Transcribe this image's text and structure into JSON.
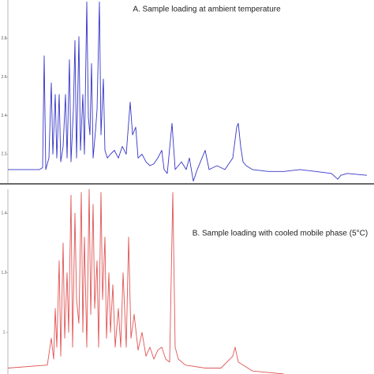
{
  "chart_data": [
    {
      "type": "line",
      "title": "A. Sample loading at ambient temperature",
      "xlim": [
        0,
        455
      ],
      "ylim": [
        2.05,
        3.0
      ],
      "yticks": [
        2.2,
        2.4,
        2.6,
        2.8
      ],
      "series": [
        {
          "color": "#3535c8",
          "x": [
            0,
            40,
            44,
            46,
            48,
            52,
            55,
            57,
            60,
            62,
            65,
            67,
            70,
            73,
            75,
            78,
            80,
            83,
            85,
            87,
            90,
            92,
            95,
            97,
            100,
            102,
            104,
            106,
            108,
            111,
            113,
            116,
            118,
            121,
            123,
            126,
            130,
            135,
            140,
            145,
            150,
            155,
            158,
            162,
            165,
            170,
            175,
            180,
            185,
            190,
            195,
            198,
            202,
            208,
            212,
            220,
            226,
            230,
            235,
            240,
            250,
            255,
            265,
            275,
            285,
            290,
            292,
            295,
            298,
            302,
            310,
            330,
            350,
            370,
            390,
            410,
            418,
            422,
            430,
            455
          ],
          "values": [
            2.12,
            2.12,
            2.13,
            2.71,
            2.12,
            2.18,
            2.57,
            2.2,
            2.51,
            2.18,
            2.51,
            2.16,
            2.24,
            2.51,
            2.18,
            2.69,
            2.16,
            2.43,
            2.79,
            2.18,
            2.81,
            2.22,
            2.51,
            2.2,
            2.99,
            2.39,
            2.3,
            2.67,
            2.18,
            2.32,
            2.43,
            2.99,
            2.3,
            2.59,
            2.22,
            2.18,
            2.2,
            2.22,
            2.18,
            2.24,
            2.2,
            2.47,
            2.3,
            2.34,
            2.18,
            2.2,
            2.16,
            2.14,
            2.15,
            2.18,
            2.22,
            2.12,
            2.1,
            2.36,
            2.12,
            2.16,
            2.12,
            2.18,
            2.06,
            2.12,
            2.22,
            2.12,
            2.14,
            2.12,
            2.18,
            2.34,
            2.36,
            2.24,
            2.16,
            2.14,
            2.12,
            2.11,
            2.11,
            2.12,
            2.11,
            2.1,
            2.07,
            2.09,
            2.1,
            2.09
          ]
        }
      ]
    },
    {
      "type": "line",
      "title": "B. Sample loading with cooled mobile phase (5°C)",
      "xlim": [
        0,
        455
      ],
      "ylim": [
        0.86,
        1.48
      ],
      "yticks": [
        1.0,
        1.2,
        1.4
      ],
      "series": [
        {
          "color": "#e05555",
          "x": [
            0,
            50,
            55,
            58,
            60,
            62,
            65,
            67,
            70,
            72,
            75,
            77,
            80,
            82,
            85,
            87,
            90,
            93,
            95,
            97,
            100,
            103,
            105,
            108,
            110,
            113,
            115,
            118,
            120,
            123,
            125,
            128,
            130,
            133,
            136,
            140,
            143,
            146,
            150,
            153,
            156,
            160,
            165,
            170,
            175,
            180,
            185,
            190,
            195,
            200,
            205,
            209,
            212,
            216,
            225,
            250,
            270,
            285,
            288,
            292,
            310,
            350
          ],
          "values": [
            0.88,
            0.89,
            0.98,
            0.91,
            1.08,
            0.95,
            1.24,
            0.92,
            1.3,
            0.98,
            1.2,
            1.0,
            1.46,
            0.95,
            1.4,
            1.11,
            1.03,
            1.47,
            1.0,
            1.32,
            0.95,
            1.48,
            1.06,
            1.43,
            1.08,
            1.24,
            0.95,
            1.47,
            1.11,
            1.32,
            0.98,
            1.2,
            1.0,
            1.16,
            0.95,
            1.08,
            0.95,
            1.2,
            0.95,
            1.32,
            0.98,
            1.06,
            0.94,
            1.0,
            0.92,
            0.95,
            0.91,
            0.94,
            0.95,
            0.91,
            0.9,
            1.47,
            0.95,
            0.91,
            0.89,
            0.88,
            0.88,
            0.92,
            0.95,
            0.9,
            0.87,
            0.86
          ]
        }
      ]
    }
  ]
}
